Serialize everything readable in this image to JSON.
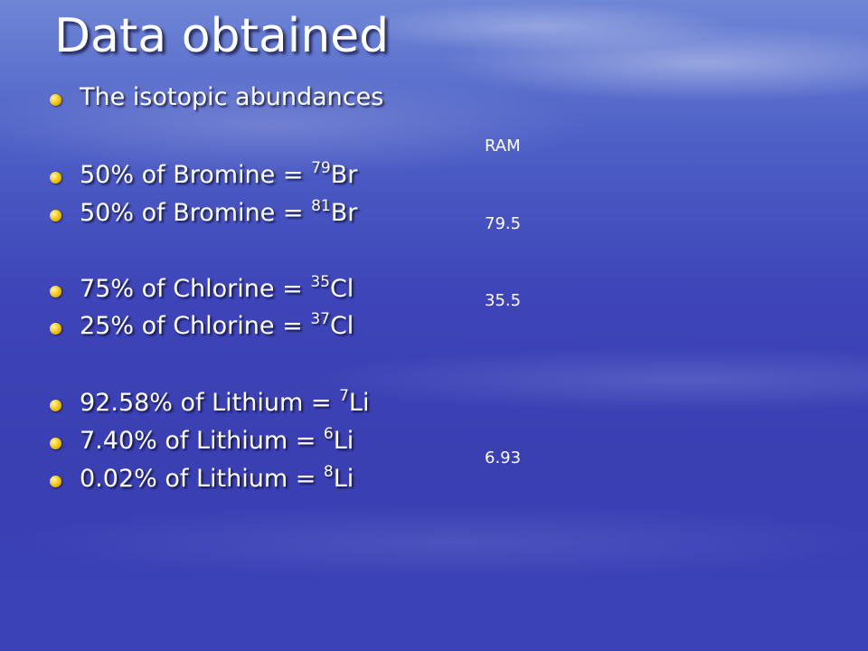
{
  "title": "Data obtained",
  "bullets": [
    {
      "text": "The isotopic abundances"
    },
    {
      "text": "50% of Bromine = ",
      "sup": "79",
      "symbol": "Br"
    },
    {
      "text": "50% of Bromine = ",
      "sup": "81",
      "symbol": "Br"
    },
    {
      "text": "75% of Chlorine = ",
      "sup": "35",
      "symbol": "Cl"
    },
    {
      "text": "25% of Chlorine = ",
      "sup": "37",
      "symbol": "Cl"
    },
    {
      "text": "92.58% of Lithium = ",
      "sup": "7",
      "symbol": "Li"
    },
    {
      "text": "7.40% of Lithium = ",
      "sup": "6",
      "symbol": "Li"
    },
    {
      "text": "0.02% of Lithium = ",
      "sup": "8",
      "symbol": "Li"
    }
  ],
  "ram": {
    "label": "RAM",
    "values": [
      "79.5",
      "35.5",
      "6.93"
    ]
  }
}
